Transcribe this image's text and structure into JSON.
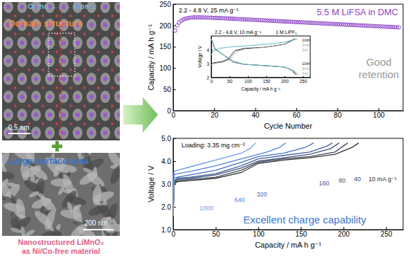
{
  "chart_data": [
    {
      "type": "scatter",
      "xlabel": "Cycle Number",
      "ylabel": "Capacity / mA h g⁻¹",
      "annotations": [
        "2.2 - 4.8 V, 25 mA g⁻¹",
        "Good",
        "retention"
      ],
      "xlim": [
        0,
        112
      ],
      "ylim": [
        0,
        250
      ],
      "xticks": [
        0,
        20,
        40,
        60,
        80,
        100
      ],
      "yticks": [
        0,
        50,
        100,
        150,
        200,
        250
      ],
      "series": [
        {
          "name": "5.5 M LiFSA in DMC",
          "color": "#8e44c8",
          "marker": "circle",
          "x": [
            1,
            2,
            3,
            4,
            5,
            6,
            7,
            8,
            9,
            10,
            11,
            12,
            13,
            14,
            15,
            16,
            17,
            18,
            19,
            20,
            21,
            22,
            23,
            24,
            25,
            26,
            27,
            28,
            29,
            30,
            31,
            32,
            33,
            34,
            35,
            36,
            37,
            38,
            39,
            40,
            41,
            42,
            43,
            44,
            45,
            46,
            47,
            48,
            49,
            50,
            51,
            52,
            53,
            54,
            55,
            56,
            57,
            58,
            59,
            60,
            61,
            62,
            63,
            64,
            65,
            66,
            67,
            68,
            69,
            70,
            71,
            72,
            73,
            74,
            75,
            76,
            77,
            78,
            79,
            80,
            81,
            82,
            83,
            84,
            85,
            86,
            87,
            88,
            89,
            90,
            91,
            92,
            93,
            94,
            95,
            96,
            97,
            98,
            99,
            100,
            101,
            102,
            103,
            104,
            105,
            106,
            107,
            108,
            109,
            110
          ],
          "values": [
            188,
            200,
            207,
            211,
            214,
            216,
            217,
            218,
            218.5,
            219,
            219,
            219,
            219,
            219,
            218.8,
            218.6,
            218.4,
            218.2,
            218,
            217.8,
            217.6,
            217.4,
            217.2,
            217,
            216.8,
            216.6,
            216.3,
            216,
            215.8,
            215.5,
            215.3,
            215,
            214.8,
            214.5,
            214.3,
            214,
            213.8,
            213.5,
            213.3,
            213,
            212.7,
            212.5,
            212.2,
            212,
            211.7,
            211.5,
            211.2,
            211,
            210.7,
            210.5,
            210.2,
            210,
            209.7,
            209.5,
            209.2,
            209,
            208.7,
            208.5,
            208.2,
            208,
            207.7,
            207.5,
            207.2,
            207,
            206.7,
            206.5,
            206.2,
            206,
            205.7,
            205.5,
            205.2,
            205,
            204.7,
            204.5,
            204.2,
            204,
            203.7,
            203.5,
            203.2,
            203,
            202.7,
            202.5,
            202.2,
            202,
            201.7,
            201.5,
            201.2,
            201,
            200.7,
            200.5,
            200.2,
            200,
            199.7,
            199.5,
            199.2,
            199,
            198.7,
            198.5,
            198.2,
            198,
            197.7,
            197.5,
            197.2,
            197,
            196.7,
            196.5,
            196.2,
            196,
            195.7,
            195.5
          ]
        }
      ]
    },
    {
      "type": "line",
      "xlabel": "Capacity / mA h g⁻¹",
      "ylabel": "Voltage / V",
      "annotations": [
        "2.2 - 4.8 V, 10 mA g⁻¹",
        "1 M LiPF₆"
      ],
      "xlim": [
        0,
        270
      ],
      "ylim": [
        2,
        5
      ],
      "xticks": [
        0,
        50,
        100,
        150,
        200,
        250
      ],
      "yticks": [
        2,
        3,
        4
      ],
      "series": [
        {
          "name": "10th",
          "color": "#222222",
          "x": [
            0,
            5,
            30,
            45,
            65,
            90,
            150,
            200,
            220,
            228,
            null,
            0,
            10,
            30,
            60,
            90,
            150,
            200,
            222,
            232
          ],
          "values": [
            2.9,
            3.05,
            3.15,
            3.3,
            3.95,
            4.1,
            4.2,
            4.4,
            4.7,
            4.8,
            null,
            4.8,
            4.05,
            3.7,
            3.1,
            2.95,
            2.85,
            2.75,
            2.5,
            2.2
          ]
        },
        {
          "name": "2nd",
          "color": "#9a9a9a",
          "x": [
            0,
            5,
            30,
            50,
            70,
            90,
            150,
            200,
            225,
            235,
            null,
            0,
            10,
            30,
            60,
            90,
            150,
            200,
            225,
            238
          ],
          "values": [
            2.9,
            3.0,
            3.1,
            3.3,
            3.9,
            4.05,
            4.2,
            4.4,
            4.7,
            4.8,
            null,
            4.8,
            4.1,
            3.7,
            3.1,
            2.95,
            2.85,
            2.75,
            2.5,
            2.2
          ]
        },
        {
          "name": "1st",
          "color": "#5fb8c8",
          "x": [
            0,
            5,
            20,
            50,
            100,
            150,
            200,
            220,
            230,
            null,
            0,
            10,
            30,
            60,
            90,
            150,
            200,
            220,
            228
          ],
          "values": [
            3.6,
            3.9,
            4.1,
            4.2,
            4.3,
            4.4,
            4.55,
            4.7,
            4.8,
            null,
            4.8,
            4.1,
            3.7,
            3.2,
            2.95,
            2.85,
            2.75,
            2.55,
            2.2
          ]
        }
      ]
    },
    {
      "type": "line",
      "xlabel": "Capacity / mA h g⁻¹",
      "ylabel": "Voltage / V",
      "annotations": [
        "Loading: 3.35 mg cm⁻²",
        "Excellent charge capability"
      ],
      "xlim": [
        0,
        270
      ],
      "ylim": [
        1,
        5
      ],
      "xticks": [
        0,
        50,
        100,
        150,
        200,
        250
      ],
      "yticks": [
        {
          "value": 1,
          "label": "1.0"
        },
        {
          "value": 2,
          "label": "2.0"
        },
        {
          "value": 3,
          "label": "3.0"
        },
        {
          "value": 4,
          "label": "4.0"
        },
        {
          "value": 5,
          "label": "5.0"
        }
      ],
      "series": [
        {
          "name": "10 mA g⁻¹",
          "color": "#2b2b2b",
          "x": [
            0,
            1,
            5,
            20,
            50,
            80,
            100,
            130,
            160,
            190,
            210,
            218
          ],
          "values": [
            1.6,
            3.0,
            3.1,
            3.15,
            3.25,
            3.5,
            3.9,
            4.05,
            4.15,
            4.3,
            4.6,
            4.8
          ]
        },
        {
          "name": "40",
          "color": "#3b4456",
          "x": [
            0,
            1,
            5,
            20,
            50,
            80,
            100,
            130,
            160,
            190,
            205
          ],
          "values": [
            1.6,
            3.05,
            3.15,
            3.2,
            3.3,
            3.6,
            3.95,
            4.1,
            4.2,
            4.4,
            4.8
          ]
        },
        {
          "name": "80",
          "color": "#3c4f78",
          "x": [
            0,
            1,
            5,
            20,
            50,
            80,
            100,
            130,
            160,
            185,
            195
          ],
          "values": [
            1.6,
            3.1,
            3.2,
            3.25,
            3.4,
            3.7,
            4.0,
            4.15,
            4.3,
            4.55,
            4.8
          ]
        },
        {
          "name": "160",
          "color": "#3c5c9c",
          "x": [
            0,
            1,
            5,
            20,
            50,
            80,
            100,
            130,
            160,
            180,
            187
          ],
          "values": [
            1.6,
            3.15,
            3.25,
            3.3,
            3.45,
            3.8,
            4.1,
            4.25,
            4.4,
            4.65,
            4.8
          ]
        },
        {
          "name": "320",
          "color": "#3f6bc0",
          "x": [
            0,
            1,
            5,
            20,
            50,
            80,
            100,
            130,
            155,
            165
          ],
          "values": [
            1.6,
            3.25,
            3.3,
            3.4,
            3.6,
            3.95,
            4.2,
            4.35,
            4.6,
            4.8
          ]
        },
        {
          "name": "640",
          "color": "#4f80d8",
          "x": [
            0,
            1,
            5,
            20,
            50,
            80,
            110,
            125,
            132
          ],
          "values": [
            1.6,
            3.4,
            3.45,
            3.55,
            3.8,
            4.1,
            4.4,
            4.6,
            4.8
          ]
        },
        {
          "name": "1000",
          "color": "#6a98e6",
          "x": [
            0,
            1,
            5,
            20,
            50,
            80,
            90,
            97
          ],
          "values": [
            1.6,
            3.55,
            3.6,
            3.75,
            4.05,
            4.35,
            4.55,
            4.8
          ]
        }
      ]
    }
  ],
  "figure": {
    "tem_image": {
      "ortho": "Ortho.←",
      "mono": "→ Mono.",
      "title": "Domain structure",
      "scale_bar": "0.5 nm"
    },
    "sem_image": {
      "title": "Large surface area",
      "scale_bar": "200 nm"
    },
    "caption": [
      "Nanostructured LiMnO₂",
      "as Ni/Co-free material"
    ]
  }
}
